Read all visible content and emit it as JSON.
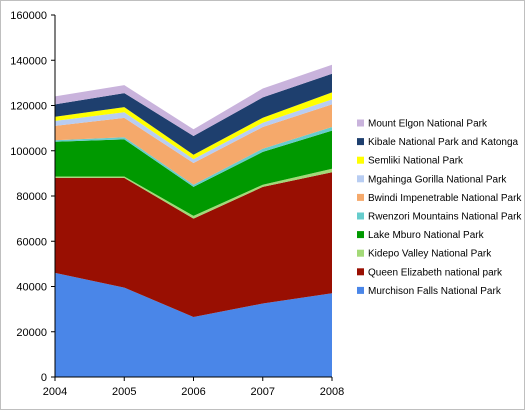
{
  "chart_data": {
    "type": "area",
    "stacked": true,
    "x": [
      "2004",
      "2005",
      "2006",
      "2007",
      "2008"
    ],
    "ylim": [
      0,
      160000
    ],
    "yticks": [
      0,
      20000,
      40000,
      60000,
      80000,
      100000,
      120000,
      140000,
      160000
    ],
    "legend_position": "right",
    "grid": false,
    "series": [
      {
        "name": "Murchison Falls National Park",
        "color": "#4a86e8",
        "values": [
          46000,
          39500,
          26500,
          32500,
          37000
        ]
      },
      {
        "name": "Queen Elizabeth national park",
        "color": "#990f02",
        "values": [
          42000,
          48500,
          43500,
          51500,
          53500
        ]
      },
      {
        "name": "Kidepo Valley National Park",
        "color": "#a3d977",
        "values": [
          600,
          600,
          1200,
          1000,
          1500
        ]
      },
      {
        "name": "Lake Mburo National Park",
        "color": "#009900",
        "values": [
          15400,
          16400,
          12800,
          14500,
          16900
        ]
      },
      {
        "name": "Rwenzori Mountains National Park",
        "color": "#66cccc",
        "values": [
          600,
          1000,
          1000,
          1400,
          1600
        ]
      },
      {
        "name": "Bwindi Impenetrable National Park",
        "color": "#f5a96b",
        "values": [
          6400,
          8500,
          9600,
          9600,
          10000
        ]
      },
      {
        "name": "Mgahinga Gorilla National Park",
        "color": "#b8cdf2",
        "values": [
          2200,
          2500,
          1700,
          1900,
          2200
        ]
      },
      {
        "name": "Semliki National Park",
        "color": "#ffff00",
        "values": [
          1800,
          2300,
          1900,
          2200,
          3100
        ]
      },
      {
        "name": "Kibale National Park and Katonga",
        "color": "#1e3f6e",
        "values": [
          5500,
          6200,
          8300,
          9000,
          8200
        ]
      },
      {
        "name": "Mount Elgon National Park",
        "color": "#c9b3dc",
        "values": [
          3500,
          3500,
          3000,
          3900,
          4000
        ]
      }
    ]
  }
}
